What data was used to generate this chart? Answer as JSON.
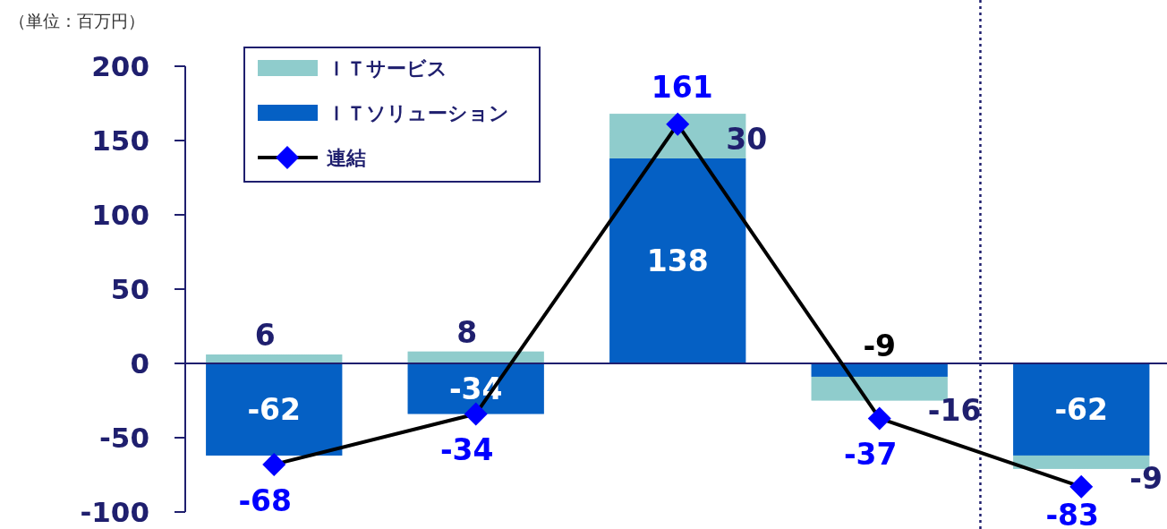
{
  "chart_data": {
    "type": "bar",
    "stacked": true,
    "categories": [
      null,
      null,
      null,
      null,
      null
    ],
    "annotations": [
      "（単位：百万円）"
    ],
    "series": [
      {
        "name": "ＩＴソリューション",
        "color": "#0560c4",
        "values": [
          -62,
          -34,
          138,
          -9,
          -62
        ]
      },
      {
        "name": "ＩＴサービス",
        "color": "#8fcccc",
        "values": [
          6,
          8,
          30,
          -16,
          -9
        ]
      },
      {
        "name": "連結",
        "type": "line",
        "color": "#000000",
        "marker": "diamond",
        "values": [
          -68,
          -34,
          161,
          -37,
          -83
        ]
      }
    ],
    "ylim": [
      -100,
      200
    ],
    "yticks": [
      -100,
      -50,
      0,
      50,
      100,
      150,
      200
    ],
    "ref_lines": [
      {
        "axis": "y",
        "value": 0,
        "color": "#1f1f6e"
      }
    ],
    "data_labels": true,
    "legend": "top left",
    "grid": false,
    "tick_labels": "y"
  }
}
